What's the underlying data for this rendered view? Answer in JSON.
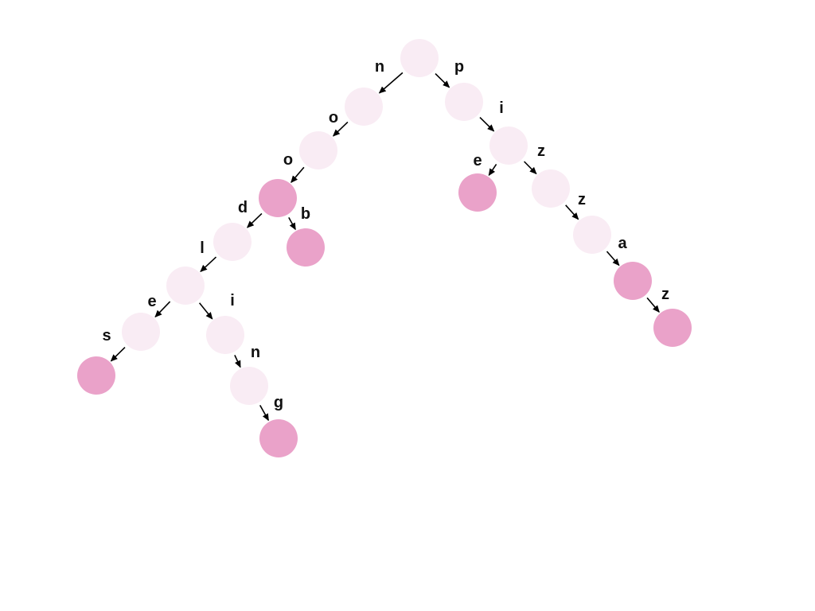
{
  "colors": {
    "internal_node": "#f9ecf4",
    "terminal_node": "#eaa2c9",
    "edge": "#000000",
    "label": "#111111"
  },
  "trie": {
    "nodes": [
      {
        "id": "root",
        "terminal": false
      },
      {
        "id": "n",
        "terminal": false
      },
      {
        "id": "no",
        "terminal": false
      },
      {
        "id": "noo",
        "terminal": true
      },
      {
        "id": "nood",
        "terminal": false
      },
      {
        "id": "noob",
        "terminal": true
      },
      {
        "id": "noodl",
        "terminal": false
      },
      {
        "id": "noodle",
        "terminal": false
      },
      {
        "id": "noodles",
        "terminal": true
      },
      {
        "id": "noodli",
        "terminal": false
      },
      {
        "id": "noodlin",
        "terminal": false
      },
      {
        "id": "noodling",
        "terminal": true
      },
      {
        "id": "p",
        "terminal": false
      },
      {
        "id": "pi",
        "terminal": false
      },
      {
        "id": "pie",
        "terminal": true
      },
      {
        "id": "piz",
        "terminal": false
      },
      {
        "id": "pizz",
        "terminal": false
      },
      {
        "id": "pizza",
        "terminal": true
      },
      {
        "id": "pizzaz",
        "terminal": true
      }
    ],
    "edges": [
      {
        "from": "root",
        "to": "n",
        "label": "n"
      },
      {
        "from": "n",
        "to": "no",
        "label": "o"
      },
      {
        "from": "no",
        "to": "noo",
        "label": "o"
      },
      {
        "from": "noo",
        "to": "nood",
        "label": "d"
      },
      {
        "from": "noo",
        "to": "noob",
        "label": "b"
      },
      {
        "from": "nood",
        "to": "noodl",
        "label": "l"
      },
      {
        "from": "noodl",
        "to": "noodle",
        "label": "e"
      },
      {
        "from": "noodle",
        "to": "noodles",
        "label": "s"
      },
      {
        "from": "noodl",
        "to": "noodli",
        "label": "i"
      },
      {
        "from": "noodli",
        "to": "noodlin",
        "label": "n"
      },
      {
        "from": "noodlin",
        "to": "noodling",
        "label": "g"
      },
      {
        "from": "root",
        "to": "p",
        "label": "p"
      },
      {
        "from": "p",
        "to": "pi",
        "label": "i"
      },
      {
        "from": "pi",
        "to": "pie",
        "label": "e"
      },
      {
        "from": "pi",
        "to": "piz",
        "label": "z"
      },
      {
        "from": "piz",
        "to": "pizz",
        "label": "z"
      },
      {
        "from": "pizz",
        "to": "pizza",
        "label": "a"
      },
      {
        "from": "pizza",
        "to": "pizzaz",
        "label": "z"
      }
    ]
  }
}
